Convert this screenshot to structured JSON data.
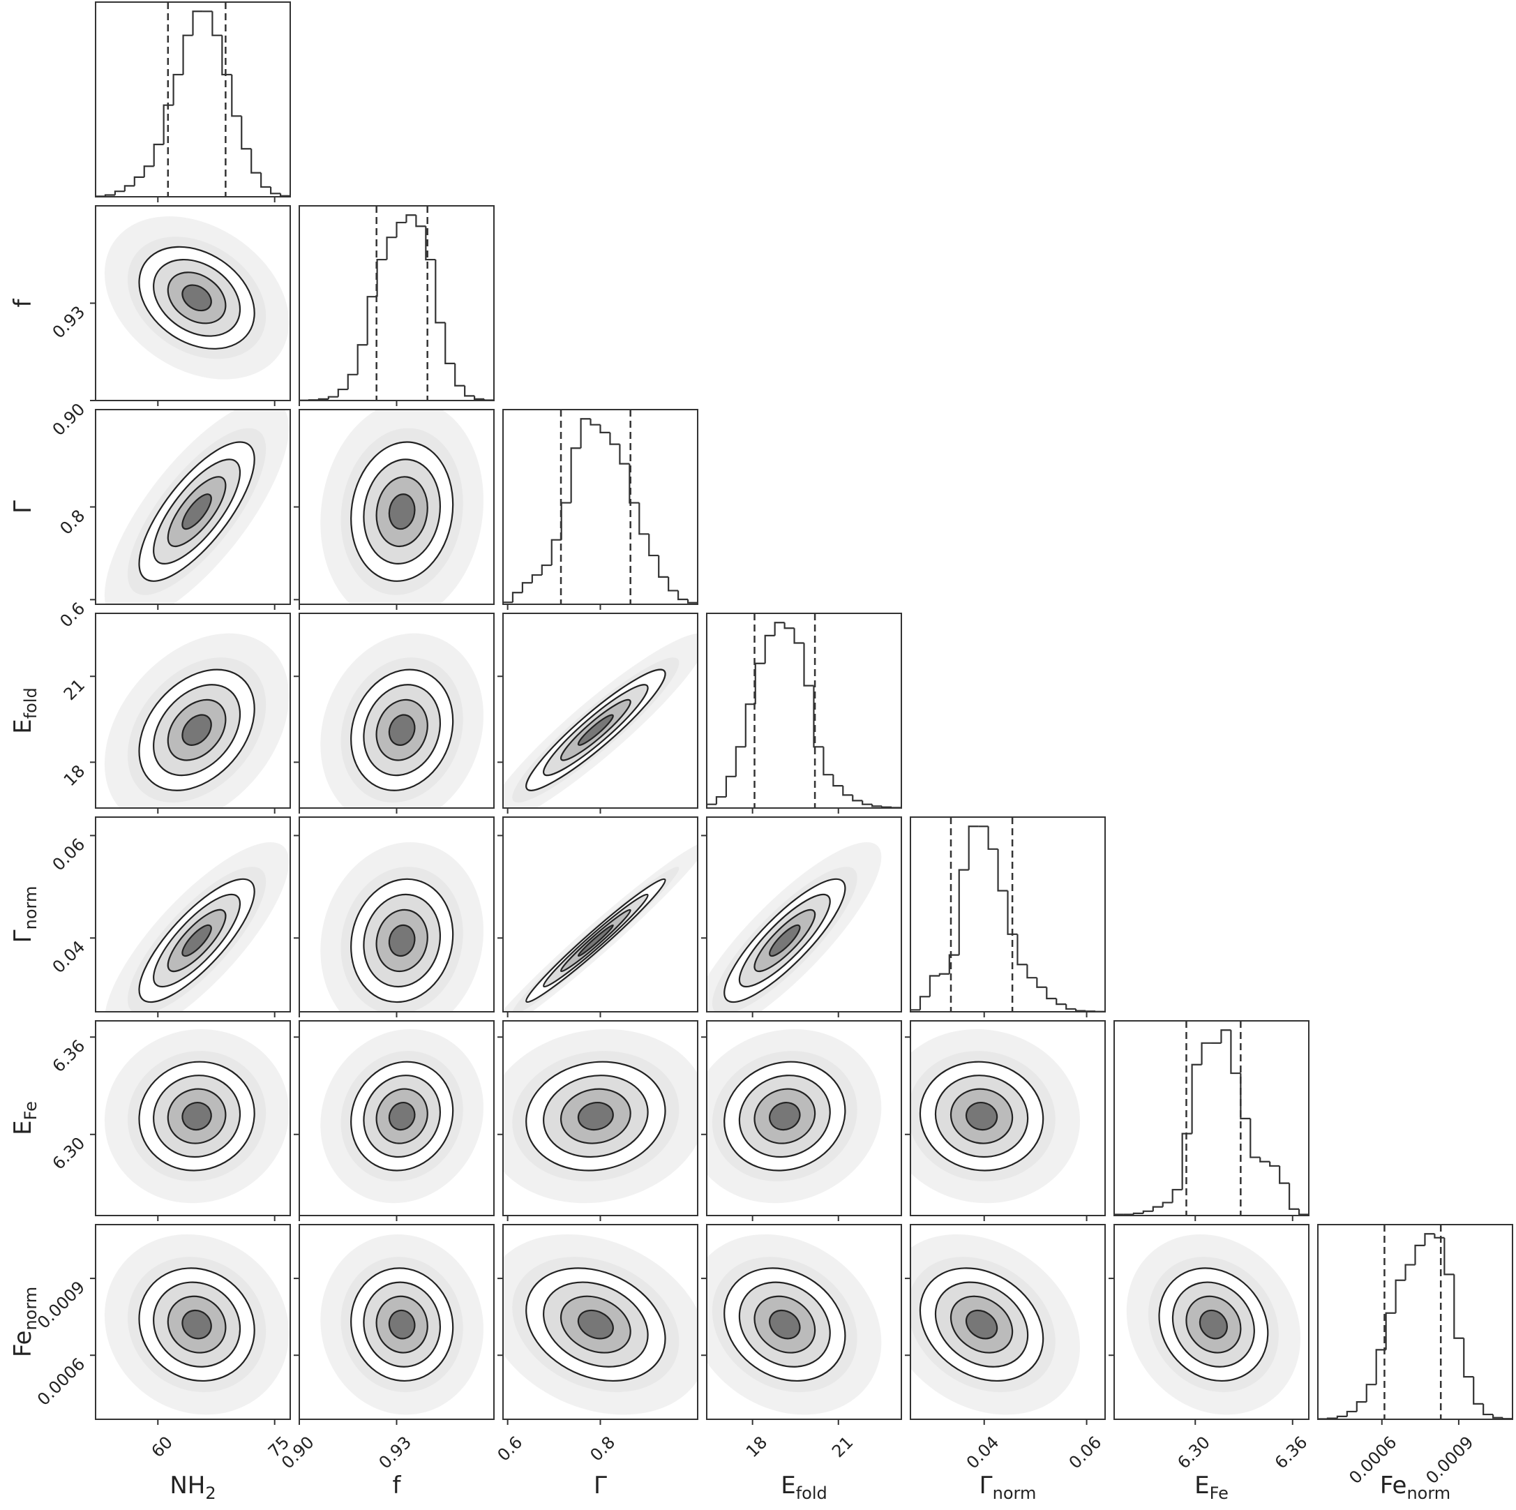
{
  "chart_data": {
    "type": "corner",
    "params": [
      {
        "label": "NH",
        "sub": "2",
        "lim": [
          52,
          77
        ],
        "ticks": [
          60,
          75
        ],
        "quantiles": [
          61.3,
          68.7
        ],
        "bins": [
          52,
          53.25,
          54.5,
          55.75,
          57,
          58.25,
          59.5,
          60.75,
          62,
          63.25,
          64.5,
          65.75,
          67,
          68.25,
          69.5,
          70.75,
          72,
          73.25,
          74.5,
          75.75,
          77
        ],
        "counts": [
          2,
          8,
          25,
          50,
          90,
          140,
          240,
          420,
          560,
          740,
          850,
          850,
          740,
          560,
          370,
          220,
          110,
          45,
          15,
          4
        ]
      },
      {
        "label": "f",
        "lim": [
          0.9,
          0.96
        ],
        "ticks": [
          {
            "value": 0.9,
            "label": "0.90"
          },
          {
            "value": 0.93,
            "label": "0.93"
          }
        ],
        "quantiles": [
          0.9238,
          0.9395
        ],
        "bins": [
          0.9,
          0.903,
          0.906,
          0.909,
          0.912,
          0.915,
          0.918,
          0.921,
          0.924,
          0.927,
          0.93,
          0.933,
          0.936,
          0.939,
          0.942,
          0.945,
          0.948,
          0.951,
          0.954,
          0.957,
          0.96
        ],
        "counts": [
          1,
          3,
          8,
          20,
          60,
          140,
          300,
          560,
          760,
          880,
          960,
          1000,
          940,
          760,
          420,
          200,
          80,
          25,
          8,
          2
        ]
      },
      {
        "label": "Γ",
        "lim": [
          0.59,
          1.01
        ],
        "ticks": [
          0.6,
          0.8
        ],
        "quantiles": [
          0.715,
          0.865
        ],
        "bins": [
          0.59,
          0.611,
          0.632,
          0.653,
          0.674,
          0.695,
          0.716,
          0.737,
          0.758,
          0.779,
          0.8,
          0.821,
          0.842,
          0.863,
          0.884,
          0.905,
          0.926,
          0.947,
          0.968,
          0.989,
          1.01
        ],
        "counts": [
          10,
          60,
          110,
          150,
          200,
          330,
          520,
          800,
          950,
          920,
          880,
          820,
          720,
          520,
          360,
          250,
          140,
          70,
          25,
          8
        ]
      },
      {
        "label": "E",
        "sub": "fold",
        "lim": [
          16.4,
          23.2
        ],
        "ticks": [
          18,
          21
        ],
        "quantiles": [
          18.07,
          20.18
        ],
        "bins": [
          16.4,
          16.74,
          17.08,
          17.42,
          17.76,
          18.1,
          18.44,
          18.78,
          19.12,
          19.46,
          19.8,
          20.14,
          20.48,
          20.82,
          21.16,
          21.5,
          21.84,
          22.18,
          22.52,
          22.86,
          23.2
        ],
        "counts": [
          20,
          60,
          170,
          330,
          560,
          780,
          930,
          1000,
          970,
          890,
          660,
          330,
          180,
          120,
          70,
          40,
          20,
          10,
          5,
          2
        ]
      },
      {
        "label": "Γ",
        "sub": "norm",
        "lim": [
          0.0256,
          0.0636
        ],
        "ticks": [
          0.04,
          0.06
        ],
        "quantiles": [
          0.0335,
          0.0455
        ],
        "bins": [
          0.0256,
          0.0275,
          0.0294,
          0.0313,
          0.0332,
          0.0351,
          0.037,
          0.0389,
          0.0408,
          0.0427,
          0.0446,
          0.0465,
          0.0484,
          0.0503,
          0.0522,
          0.0541,
          0.056,
          0.0579,
          0.0598,
          0.0617,
          0.0636
        ],
        "counts": [
          10,
          80,
          190,
          200,
          300,
          750,
          980,
          980,
          860,
          640,
          410,
          250,
          180,
          130,
          70,
          40,
          15,
          5,
          3,
          1
        ]
      },
      {
        "label": "E",
        "sub": "Fe",
        "lim": [
          6.25,
          6.37
        ],
        "ticks": [
          {
            "value": 6.3,
            "label": "6.30"
          },
          6.36
        ],
        "quantiles": [
          6.2945,
          6.328
        ],
        "bins": [
          6.25,
          6.256,
          6.262,
          6.268,
          6.274,
          6.28,
          6.286,
          6.292,
          6.298,
          6.304,
          6.31,
          6.316,
          6.322,
          6.328,
          6.334,
          6.34,
          6.346,
          6.352,
          6.358,
          6.364,
          6.37
        ],
        "counts": [
          5,
          5,
          10,
          20,
          40,
          60,
          120,
          380,
          700,
          800,
          800,
          860,
          660,
          450,
          270,
          250,
          230,
          150,
          30,
          5
        ]
      },
      {
        "label": "Fe",
        "sub": "norm",
        "lim": [
          0.00035,
          0.00111
        ],
        "ticks": [
          0.0006,
          0.0009
        ],
        "quantiles": [
          0.00061,
          0.00083
        ],
        "bins": [
          0.00035,
          0.000388,
          0.000426,
          0.000464,
          0.000502,
          0.00054,
          0.000578,
          0.000616,
          0.000654,
          0.000692,
          0.00073,
          0.000768,
          0.000806,
          0.000844,
          0.000882,
          0.00092,
          0.000958,
          0.000996,
          0.001034,
          0.001072,
          0.00111
        ],
        "counts": [
          2,
          5,
          15,
          40,
          90,
          180,
          360,
          550,
          720,
          800,
          900,
          960,
          940,
          750,
          420,
          220,
          80,
          25,
          8,
          3
        ]
      }
    ],
    "correlations": [
      [
        -0.3
      ],
      [
        0.75,
        0.1
      ],
      [
        0.35,
        0.15,
        0.93
      ],
      [
        0.8,
        0.1,
        0.98,
        0.85
      ],
      [
        0.05,
        0.1,
        0.1,
        0.1,
        -0.05
      ],
      [
        -0.1,
        -0.05,
        -0.25,
        -0.2,
        -0.25,
        -0.15
      ]
    ]
  }
}
